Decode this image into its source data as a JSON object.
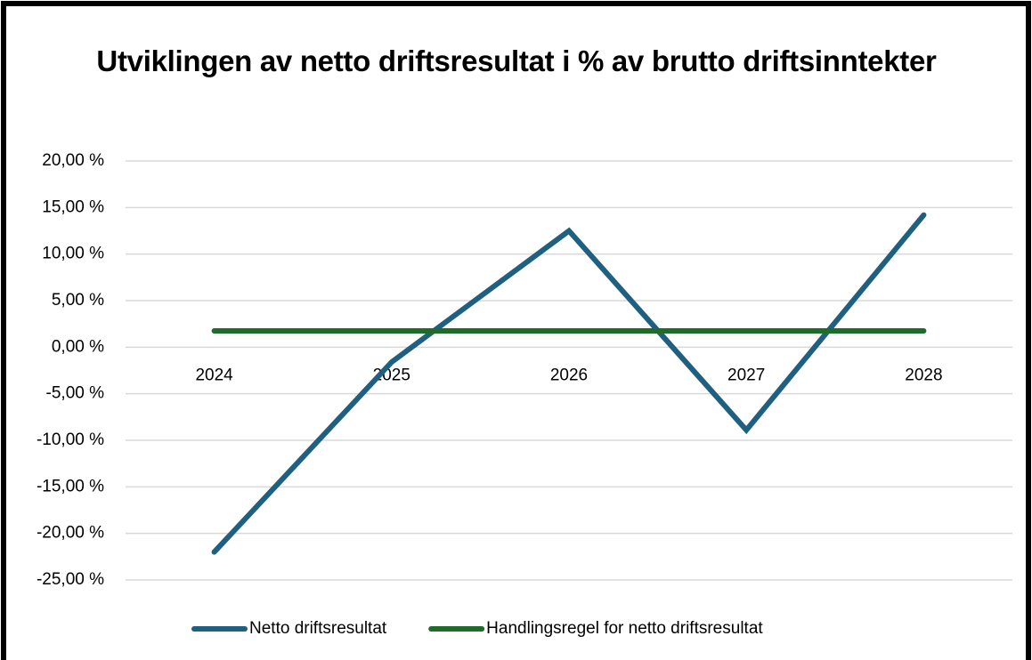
{
  "chart_data": {
    "type": "line",
    "title": "Utviklingen av netto driftsresultat i % av brutto driftsinntekter",
    "categories": [
      "2024",
      "2025",
      "2026",
      "2027",
      "2028"
    ],
    "series": [
      {
        "name": "Netto driftsresultat",
        "color": "#1f5f80",
        "values": [
          -22.0,
          -1.6,
          12.5,
          -8.9,
          14.2
        ]
      },
      {
        "name": "Handlingsregel for netto driftsresultat",
        "color": "#1e6b2a",
        "values": [
          1.75,
          1.75,
          1.75,
          1.75,
          1.75
        ]
      }
    ],
    "ylim": [
      -25,
      20
    ],
    "yticks": [
      {
        "value": -25,
        "label": "-25,00 %"
      },
      {
        "value": -20,
        "label": "-20,00 %"
      },
      {
        "value": -15,
        "label": "-15,00 %"
      },
      {
        "value": -10,
        "label": "-10,00 %"
      },
      {
        "value": -5,
        "label": "-5,00 %"
      },
      {
        "value": 0,
        "label": "0,00 %"
      },
      {
        "value": 5,
        "label": "5,00 %"
      },
      {
        "value": 10,
        "label": "10,00 %"
      },
      {
        "value": 15,
        "label": "15,00 %"
      },
      {
        "value": 20,
        "label": "20,00 %"
      }
    ],
    "grid": true,
    "legend": "bottom"
  }
}
